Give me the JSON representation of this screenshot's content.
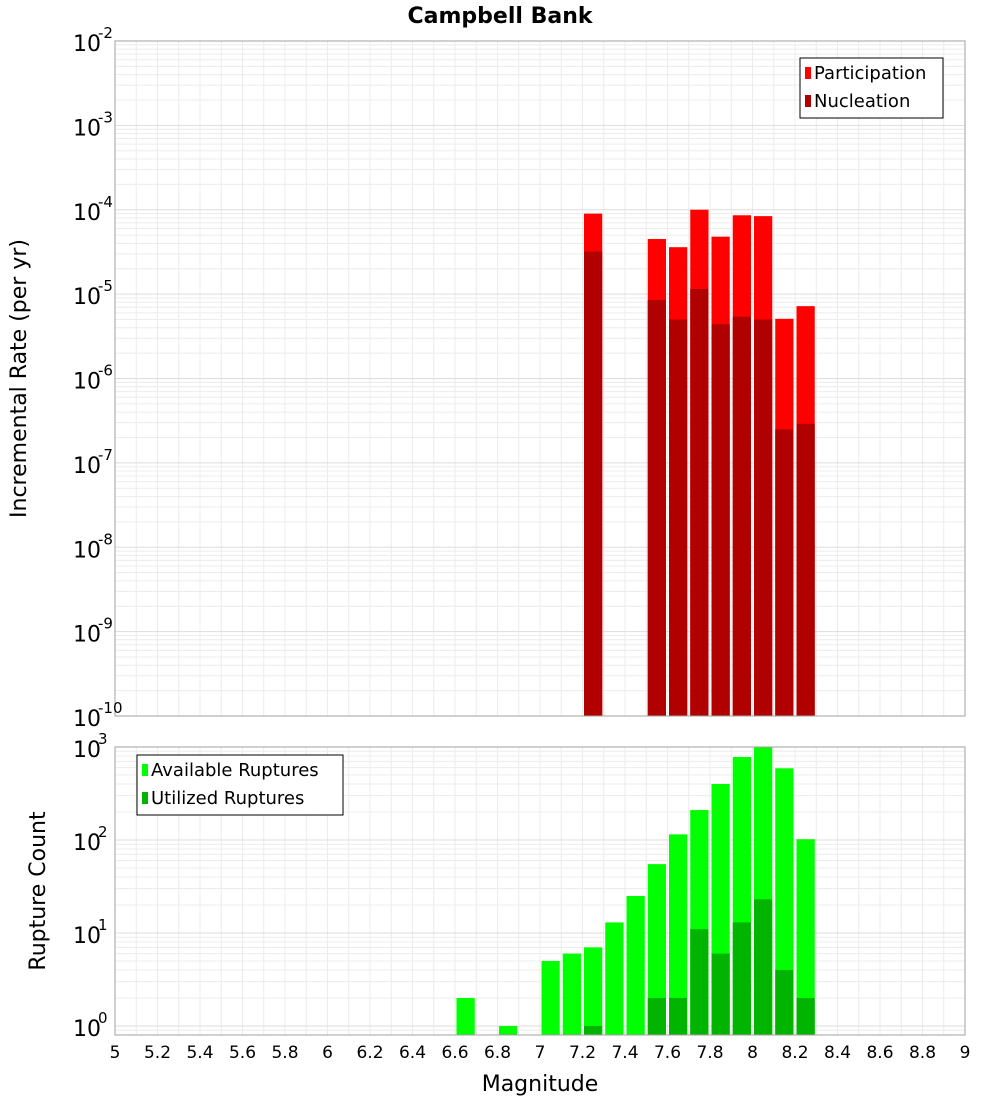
{
  "chart_data": [
    {
      "type": "bar",
      "title": "Campbell Bank",
      "xlabel": "",
      "ylabel": "Incremental Rate (per yr)",
      "yscale": "log",
      "ylim": [
        1e-10,
        0.01
      ],
      "xlim": [
        5,
        9
      ],
      "ytick_labels": [
        {
          "base": "10",
          "exp": "-10"
        },
        {
          "base": "10",
          "exp": "-9"
        },
        {
          "base": "10",
          "exp": "-8"
        },
        {
          "base": "10",
          "exp": "-7"
        },
        {
          "base": "10",
          "exp": "-6"
        },
        {
          "base": "10",
          "exp": "-5"
        },
        {
          "base": "10",
          "exp": "-4"
        },
        {
          "base": "10",
          "exp": "-3"
        },
        {
          "base": "10",
          "exp": "-2"
        }
      ],
      "legend": {
        "location": "top-right",
        "entries": [
          "Participation",
          "Nucleation"
        ]
      },
      "series": [
        {
          "name": "Participation",
          "color": "#ff0000",
          "x": [
            7.25,
            7.55,
            7.65,
            7.75,
            7.85,
            7.95,
            8.05,
            8.15,
            8.25
          ],
          "values": [
            9e-05,
            4.5e-05,
            3.6e-05,
            0.0001,
            4.8e-05,
            8.6e-05,
            8.4e-05,
            5.1e-06,
            7.2e-06
          ]
        },
        {
          "name": "Nucleation",
          "color": "#b00000",
          "x": [
            7.25,
            7.55,
            7.65,
            7.75,
            7.85,
            7.95,
            8.05,
            8.15,
            8.25
          ],
          "values": [
            3.2e-05,
            8.5e-06,
            5e-06,
            1.15e-05,
            4.4e-06,
            5.4e-06,
            5e-06,
            2.5e-07,
            2.9e-07
          ]
        }
      ]
    },
    {
      "type": "bar",
      "title": "",
      "xlabel": "Magnitude",
      "ylabel": "Rupture Count",
      "yscale": "log",
      "ylim": [
        0.8,
        1000
      ],
      "xlim": [
        5,
        9
      ],
      "ytick_labels": [
        {
          "base": "10",
          "exp": "0"
        },
        {
          "base": "10",
          "exp": "1"
        },
        {
          "base": "10",
          "exp": "2"
        },
        {
          "base": "10",
          "exp": "3"
        }
      ],
      "xtick_labels": [
        "5",
        "5.2",
        "5.4",
        "5.6",
        "5.8",
        "6",
        "6.2",
        "6.4",
        "6.6",
        "6.8",
        "7",
        "7.2",
        "7.4",
        "7.6",
        "7.8",
        "8",
        "8.2",
        "8.4",
        "8.6",
        "8.8",
        "9"
      ],
      "legend": {
        "location": "top-left",
        "entries": [
          "Available Ruptures",
          "Utilized Ruptures"
        ]
      },
      "series": [
        {
          "name": "Available Ruptures",
          "color": "#00ff00",
          "x": [
            6.65,
            6.85,
            7.05,
            7.15,
            7.25,
            7.35,
            7.45,
            7.55,
            7.65,
            7.75,
            7.85,
            7.95,
            8.05,
            8.15,
            8.25
          ],
          "values": [
            2,
            1,
            5,
            6,
            7,
            13,
            25,
            55,
            115,
            210,
            400,
            780,
            990,
            590,
            102
          ]
        },
        {
          "name": "Utilized Ruptures",
          "color": "#00b400",
          "x": [
            7.25,
            7.55,
            7.65,
            7.75,
            7.85,
            7.95,
            8.05,
            8.15,
            8.25
          ],
          "values": [
            1,
            2,
            2,
            11,
            6,
            13,
            23,
            4,
            2
          ]
        }
      ]
    }
  ]
}
